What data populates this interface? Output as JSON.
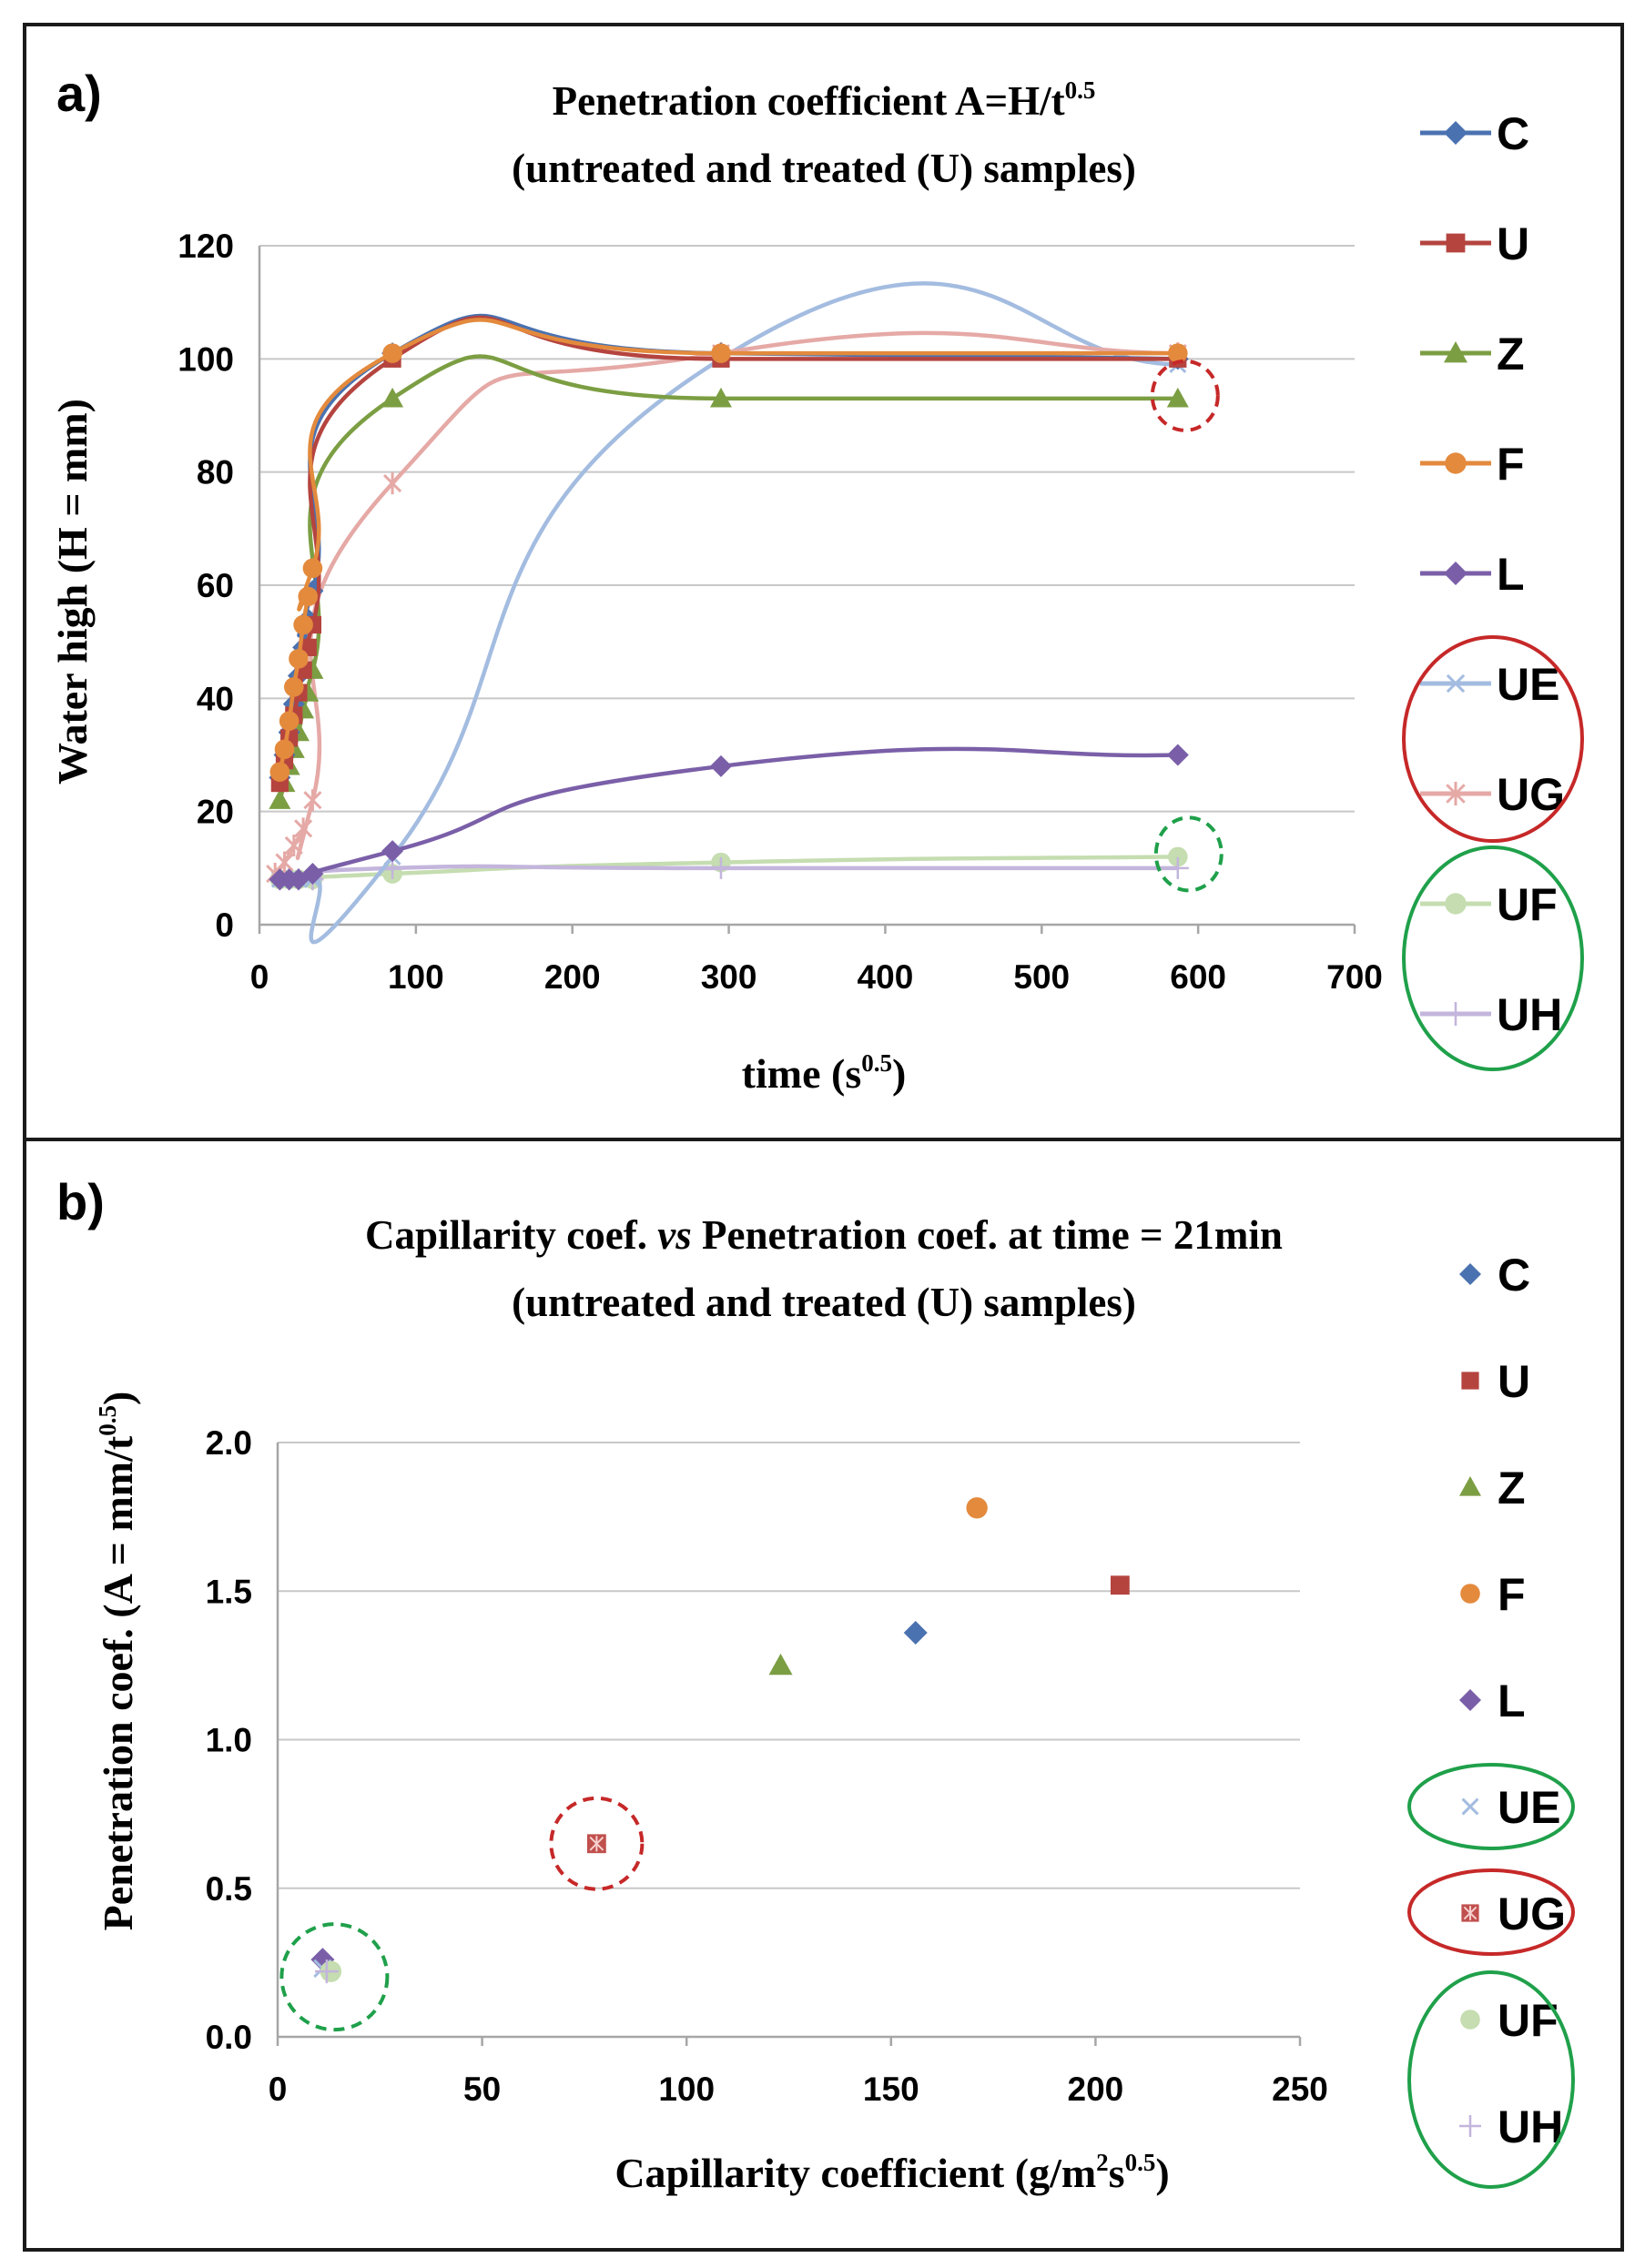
{
  "chart_data": [
    {
      "panel_label": "a)",
      "type": "line",
      "title_line1": "Penetration coefficient A=H/t",
      "title_line1_sup": "0.5",
      "title_line2": "(untreated and treated (U) samples)",
      "xlabel": "time (s",
      "xlabel_sup": "0.5",
      "xlabel_end": ")",
      "ylabel": "Water high (H = mm)",
      "xlim": [
        0,
        700
      ],
      "ylim": [
        0,
        120
      ],
      "xticks": [
        0,
        100,
        200,
        300,
        400,
        500,
        600,
        700
      ],
      "yticks": [
        0,
        20,
        40,
        60,
        80,
        100,
        120
      ],
      "grid": true,
      "legend_position": "right",
      "series": [
        {
          "name": "C",
          "color": "#4a72b0",
          "marker": "diamond",
          "x": [
            13,
            16,
            19,
            22,
            25,
            28,
            31,
            34,
            85,
            295,
            587
          ],
          "y": [
            26,
            30,
            34,
            39,
            44,
            49,
            54,
            59,
            101,
            101,
            100
          ]
        },
        {
          "name": "U",
          "color": "#b5443f",
          "marker": "square",
          "x": [
            13,
            16,
            19,
            22,
            25,
            28,
            31,
            34,
            85,
            295,
            587
          ],
          "y": [
            25,
            29,
            33,
            37,
            41,
            45,
            49,
            53,
            100,
            100,
            100
          ]
        },
        {
          "name": "Z",
          "color": "#7c9e43",
          "marker": "triangle",
          "x": [
            13,
            16,
            19,
            22,
            25,
            28,
            31,
            34,
            85,
            295,
            587
          ],
          "y": [
            22,
            25,
            28,
            31,
            34,
            38,
            41,
            45,
            93,
            93,
            93
          ]
        },
        {
          "name": "F",
          "color": "#e38a3d",
          "marker": "circle",
          "x": [
            13,
            16,
            19,
            22,
            25,
            28,
            31,
            34,
            85,
            295,
            587
          ],
          "y": [
            27,
            31,
            36,
            42,
            47,
            53,
            58,
            63,
            101,
            101,
            101
          ]
        },
        {
          "name": "L",
          "color": "#7a5fa8",
          "marker": "diamond",
          "x": [
            13,
            19,
            25,
            34,
            85,
            295,
            587
          ],
          "y": [
            8,
            8,
            8,
            9,
            13,
            28,
            30
          ]
        },
        {
          "name": "UE",
          "color": "#a3bce0",
          "marker": "x",
          "x": [
            13,
            19,
            25,
            34,
            85,
            295,
            587
          ],
          "y": [
            8,
            8,
            8,
            8,
            12,
            100,
            99
          ]
        },
        {
          "name": "UG",
          "color": "#e5a9a6",
          "marker": "star",
          "x": [
            10,
            16,
            22,
            28,
            34,
            85,
            295,
            587
          ],
          "y": [
            9,
            11,
            14,
            17,
            22,
            78,
            101,
            101
          ]
        },
        {
          "name": "UF",
          "color": "#c5ddb0",
          "marker": "circle",
          "x": [
            13,
            19,
            25,
            34,
            85,
            295,
            587
          ],
          "y": [
            8,
            8,
            8,
            8,
            9,
            11,
            12
          ]
        },
        {
          "name": "UH",
          "color": "#c3b5dc",
          "marker": "plus",
          "x": [
            13,
            19,
            25,
            34,
            85,
            295,
            587
          ],
          "y": [
            8,
            8,
            8,
            8,
            10,
            10,
            10
          ]
        }
      ],
      "highlights": [
        {
          "target": "Z",
          "style": "dashed",
          "color": "#c62828"
        },
        {
          "target": "UF",
          "style": "dashed",
          "color": "#1fa04a"
        },
        {
          "target": [
            "UE",
            "UG"
          ],
          "style": "solid",
          "color": "#c62828"
        },
        {
          "target": [
            "UF",
            "UH"
          ],
          "style": "solid",
          "color": "#1fa04a"
        }
      ]
    },
    {
      "panel_label": "b)",
      "type": "scatter",
      "title_line1_a": "Capillarity coef.",
      "title_line1_vs": "vs",
      "title_line1_b": "Penetration coef. at time = 21min",
      "title_line2": "(untreated and treated (U) samples)",
      "xlabel": "Capillarity coefficient (g/m",
      "xlabel_sup1": "2",
      "xlabel_mid": "s",
      "xlabel_sup2": "0.5",
      "xlabel_end": ")",
      "ylabel": "Penetration coef. (A = mm/t",
      "ylabel_sup": "0.5",
      "ylabel_end": ")",
      "xlim": [
        0,
        250
      ],
      "ylim": [
        0.0,
        2.0
      ],
      "xticks": [
        0,
        50,
        100,
        150,
        200,
        250
      ],
      "yticks": [
        "0.0",
        "0.5",
        "1.0",
        "1.5",
        "2.0"
      ],
      "grid": true,
      "legend_position": "right",
      "series": [
        {
          "name": "C",
          "color": "#4a72b0",
          "marker": "diamond",
          "x": 156,
          "y": 1.36
        },
        {
          "name": "U",
          "color": "#b5443f",
          "marker": "square",
          "x": 206,
          "y": 1.52
        },
        {
          "name": "Z",
          "color": "#7c9e43",
          "marker": "triangle",
          "x": 123,
          "y": 1.25
        },
        {
          "name": "F",
          "color": "#e38a3d",
          "marker": "circle",
          "x": 171,
          "y": 1.78
        },
        {
          "name": "L",
          "color": "#7a5fa8",
          "marker": "diamond",
          "x": 11,
          "y": 0.26
        },
        {
          "name": "UE",
          "color": "#a3bce0",
          "marker": "x",
          "x": 11,
          "y": 0.23
        },
        {
          "name": "UG",
          "color": "#c0504d",
          "marker": "square-star",
          "x": 78,
          "y": 0.65
        },
        {
          "name": "UF",
          "color": "#c5ddb0",
          "marker": "circle",
          "x": 13,
          "y": 0.22
        },
        {
          "name": "UH",
          "color": "#c3b5dc",
          "marker": "plus",
          "x": 12,
          "y": 0.22
        }
      ],
      "highlights": [
        {
          "target": "UG",
          "style": "dashed",
          "color": "#c62828"
        },
        {
          "target": [
            "L",
            "UE",
            "UF",
            "UH"
          ],
          "style": "dashed",
          "color": "#1fa04a"
        },
        {
          "target": "UE",
          "style": "solid",
          "color": "#1fa04a"
        },
        {
          "target": "UG",
          "style": "solid",
          "color": "#c62828"
        },
        {
          "target": [
            "UF",
            "UH"
          ],
          "style": "solid",
          "color": "#1fa04a"
        }
      ]
    }
  ]
}
